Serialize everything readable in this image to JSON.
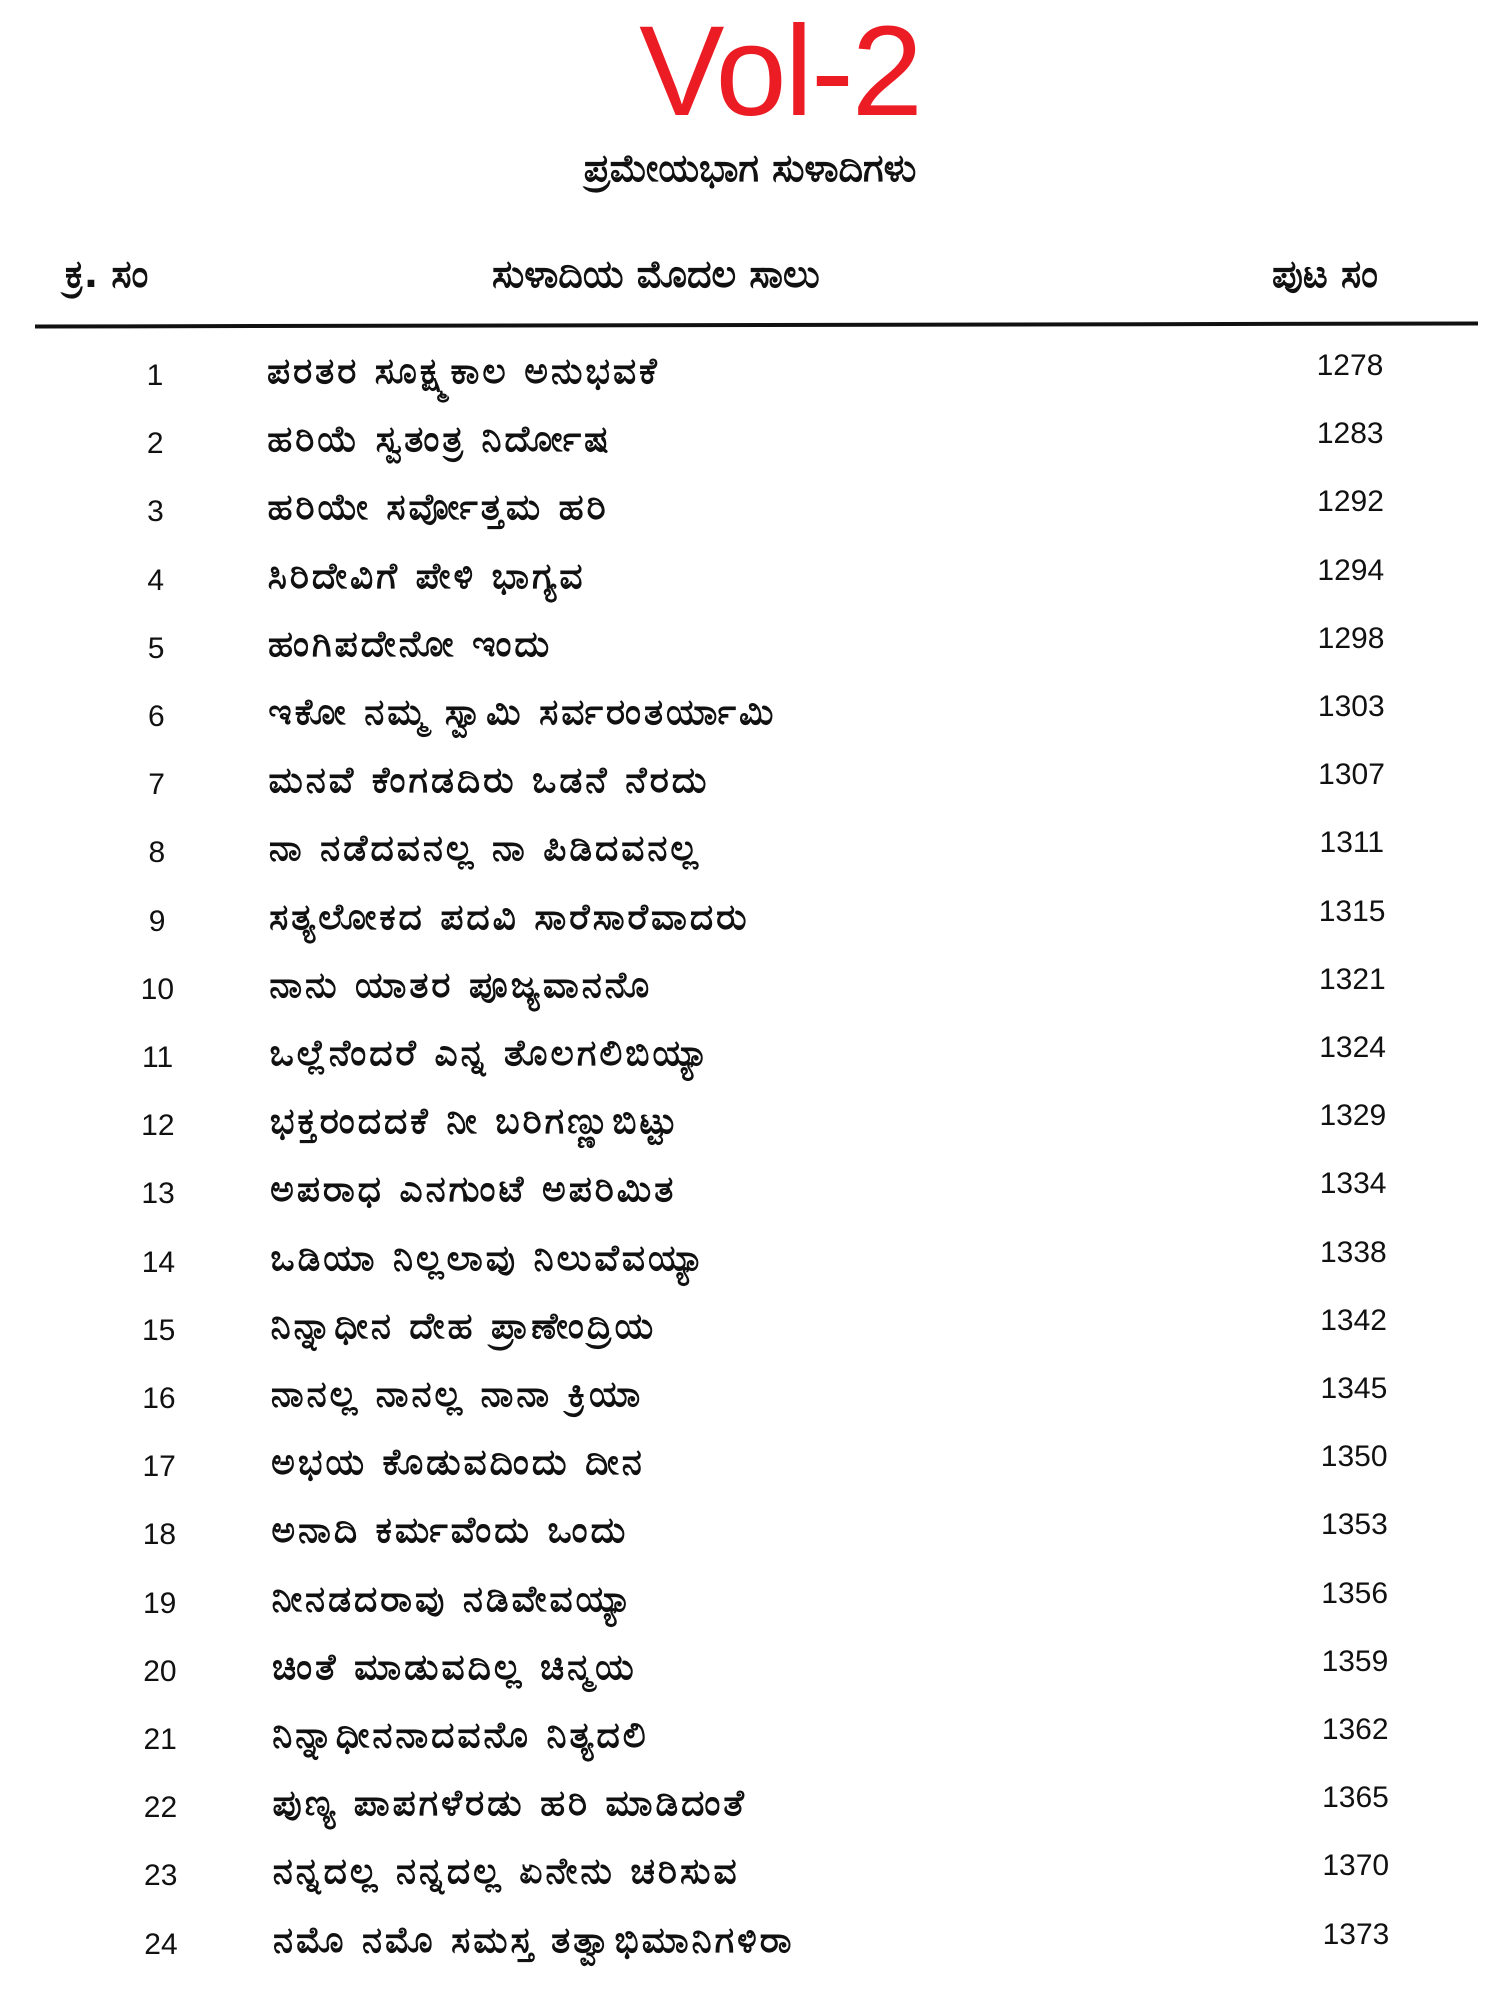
{
  "volume_label": "Vol-2",
  "colors": {
    "volume_label": "#ec1c24",
    "text": "#111111"
  },
  "subtitle": "ಪ್ರಮೇಯಭಾಗ ಸುಳಾದಿಗಳು",
  "table": {
    "headers": {
      "serial": "ಕ್ರ. ಸಂ",
      "first_line": "ಸುಳಾದಿಯ ಮೊದಲ ಸಾಲು",
      "page": "ಪುಟ ಸಂ"
    },
    "rows": [
      {
        "num": "1",
        "line": "ಪರತರ ಸೂಕ್ಷ್ಮಕಾಲ ಅನುಭವಕೆ",
        "page": "1278"
      },
      {
        "num": "2",
        "line": "ಹರಿಯೆ ಸ್ವತಂತ್ರ ನಿರ್ದೋಷ",
        "page": "1283"
      },
      {
        "num": "3",
        "line": "ಹರಿಯೇ ಸರ್ವೋತ್ತಮ ಹರಿ",
        "page": "1292"
      },
      {
        "num": "4",
        "line": "ಸಿರಿದೇವಿಗೆ ಪೇಳಿ ಭಾಗ್ಯವ",
        "page": "1294"
      },
      {
        "num": "5",
        "line": "ಹಂಗಿಪದೇನೋ ಇಂದು",
        "page": "1298"
      },
      {
        "num": "6",
        "line": "ಇಕೋ ನಮ್ಮ ಸ್ವಾಮಿ ಸರ್ವರಂತರ್ಯಾಮಿ",
        "page": "1303"
      },
      {
        "num": "7",
        "line": "ಮನವೆ ಕೆಂಗಡದಿರು ಒಡನೆ ನೆರದು",
        "page": "1307"
      },
      {
        "num": "8",
        "line": "ನಾ ನಡೆದವನಲ್ಲ ನಾ ಪಿಡಿದವನಲ್ಲ",
        "page": "1311"
      },
      {
        "num": "9",
        "line": "ಸತ್ಯಲೋಕದ ಪದವಿ ಸಾರೆಸಾರೆವಾದರು",
        "page": "1315"
      },
      {
        "num": "10",
        "line": "ನಾನು ಯಾತರ ಪೂಜ್ಯವಾನನೊ",
        "page": "1321"
      },
      {
        "num": "11",
        "line": "ಒಲ್ಲೆನೆಂದರೆ ಎನ್ನ ತೊಲಗಲಿಬಿಯ್ಯಾ",
        "page": "1324"
      },
      {
        "num": "12",
        "line": "ಭಕ್ತರಂದದಕೆ ನೀ ಬರಿಗಣ್ಣುಬಿಟ್ಟು",
        "page": "1329"
      },
      {
        "num": "13",
        "line": "ಅಪರಾಧ ಎನಗುಂಟೆ ಅಪರಿಮಿತ",
        "page": "1334"
      },
      {
        "num": "14",
        "line": "ಒಡಿಯಾ ನಿಲ್ಲಲಾವು ನಿಲುವೆವಯ್ಯಾ",
        "page": "1338"
      },
      {
        "num": "15",
        "line": "ನಿನ್ನಾಧೀನ ದೇಹ ಪ್ರಾಣೇಂದ್ರಿಯ",
        "page": "1342"
      },
      {
        "num": "16",
        "line": "ನಾನಲ್ಲ ನಾನಲ್ಲ ನಾನಾ ಕ್ರಿಯಾ",
        "page": "1345"
      },
      {
        "num": "17",
        "line": "ಅಭಯ ಕೊಡುವದಿಂದು ದೀನ",
        "page": "1350"
      },
      {
        "num": "18",
        "line": "ಅನಾದಿ ಕರ್ಮವೆಂದು ಒಂದು",
        "page": "1353"
      },
      {
        "num": "19",
        "line": "ನೀನಡದರಾವು ನಡಿವೇವಯ್ಯಾ",
        "page": "1356"
      },
      {
        "num": "20",
        "line": "ಚಿಂತೆ ಮಾಡುವದಿಲ್ಲ ಚಿನ್ಮಯ",
        "page": "1359"
      },
      {
        "num": "21",
        "line": "ನಿನ್ನಾಧೀನನಾದವನೊ ನಿತ್ಯದಲಿ",
        "page": "1362"
      },
      {
        "num": "22",
        "line": "ಪುಣ್ಯ ಪಾಪಗಳೆರಡು ಹರಿ ಮಾಡಿದಂತೆ",
        "page": "1365"
      },
      {
        "num": "23",
        "line": "ನನ್ನದಲ್ಲ ನನ್ನದಲ್ಲ ಏನೇನು ಚರಿಸುವ",
        "page": "1370"
      },
      {
        "num": "24",
        "line": "ನಮೊ ನಮೊ ಸಮಸ್ತ ತತ್ವಾಭಿಮಾನಿಗಳಿರಾ",
        "page": "1373"
      }
    ]
  }
}
